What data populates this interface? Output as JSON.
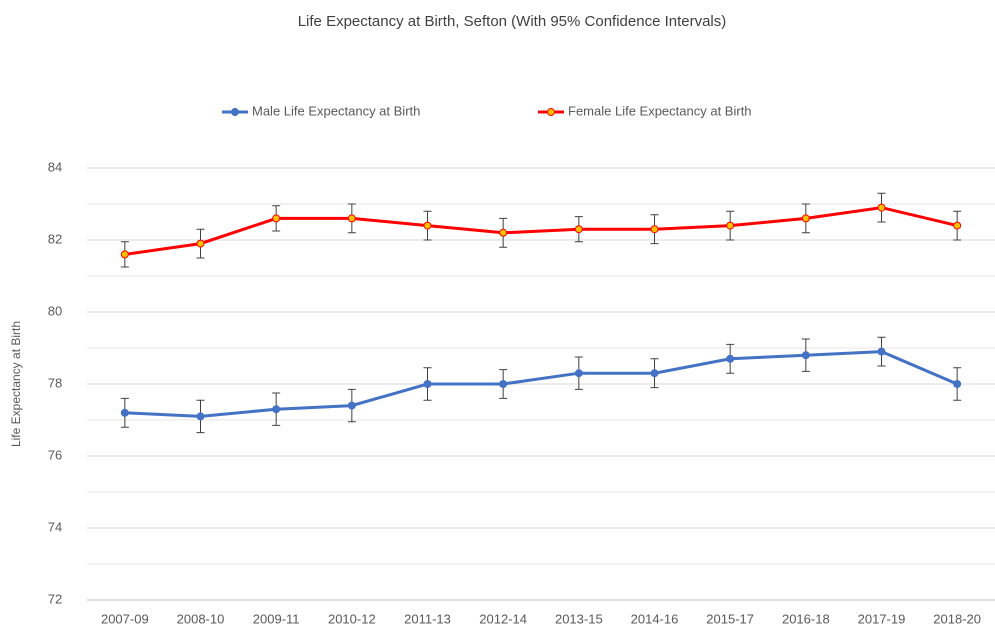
{
  "chart_data": {
    "type": "line",
    "title": "Life Expectancy at Birth, Sefton (With 95% Confidence Intervals)",
    "y_label": "Life Expectancy at Birth",
    "categories": [
      "2007-09",
      "2008-10",
      "2009-11",
      "2010-12",
      "2011-13",
      "2012-14",
      "2013-15",
      "2014-16",
      "2015-17",
      "2016-18",
      "2017-19",
      "2018-20"
    ],
    "series": [
      {
        "name": "Male Life Expectancy at Birth",
        "color": "#4472c4",
        "marker_color": "#4472c4",
        "values": [
          77.2,
          77.1,
          77.3,
          77.4,
          78.0,
          78.0,
          78.3,
          78.3,
          78.7,
          78.8,
          78.9,
          78.0
        ],
        "errors": [
          0.4,
          0.45,
          0.45,
          0.45,
          0.45,
          0.4,
          0.45,
          0.4,
          0.4,
          0.45,
          0.4,
          0.45
        ]
      },
      {
        "name": "Female Life Expectancy at Birth",
        "color": "#ff0000",
        "marker_color": "#ffc000",
        "values": [
          81.6,
          81.9,
          82.6,
          82.6,
          82.4,
          82.2,
          82.3,
          82.3,
          82.4,
          82.6,
          82.9,
          82.4
        ],
        "errors": [
          0.35,
          0.4,
          0.35,
          0.4,
          0.4,
          0.4,
          0.35,
          0.4,
          0.4,
          0.4,
          0.4,
          0.4
        ]
      }
    ],
    "ylim": [
      72,
      84
    ],
    "yticks": [
      72,
      74,
      76,
      78,
      80,
      82,
      84
    ],
    "minor_yticks": [
      73,
      75,
      77,
      79,
      81,
      83
    ],
    "grid": true,
    "legend": "top"
  }
}
